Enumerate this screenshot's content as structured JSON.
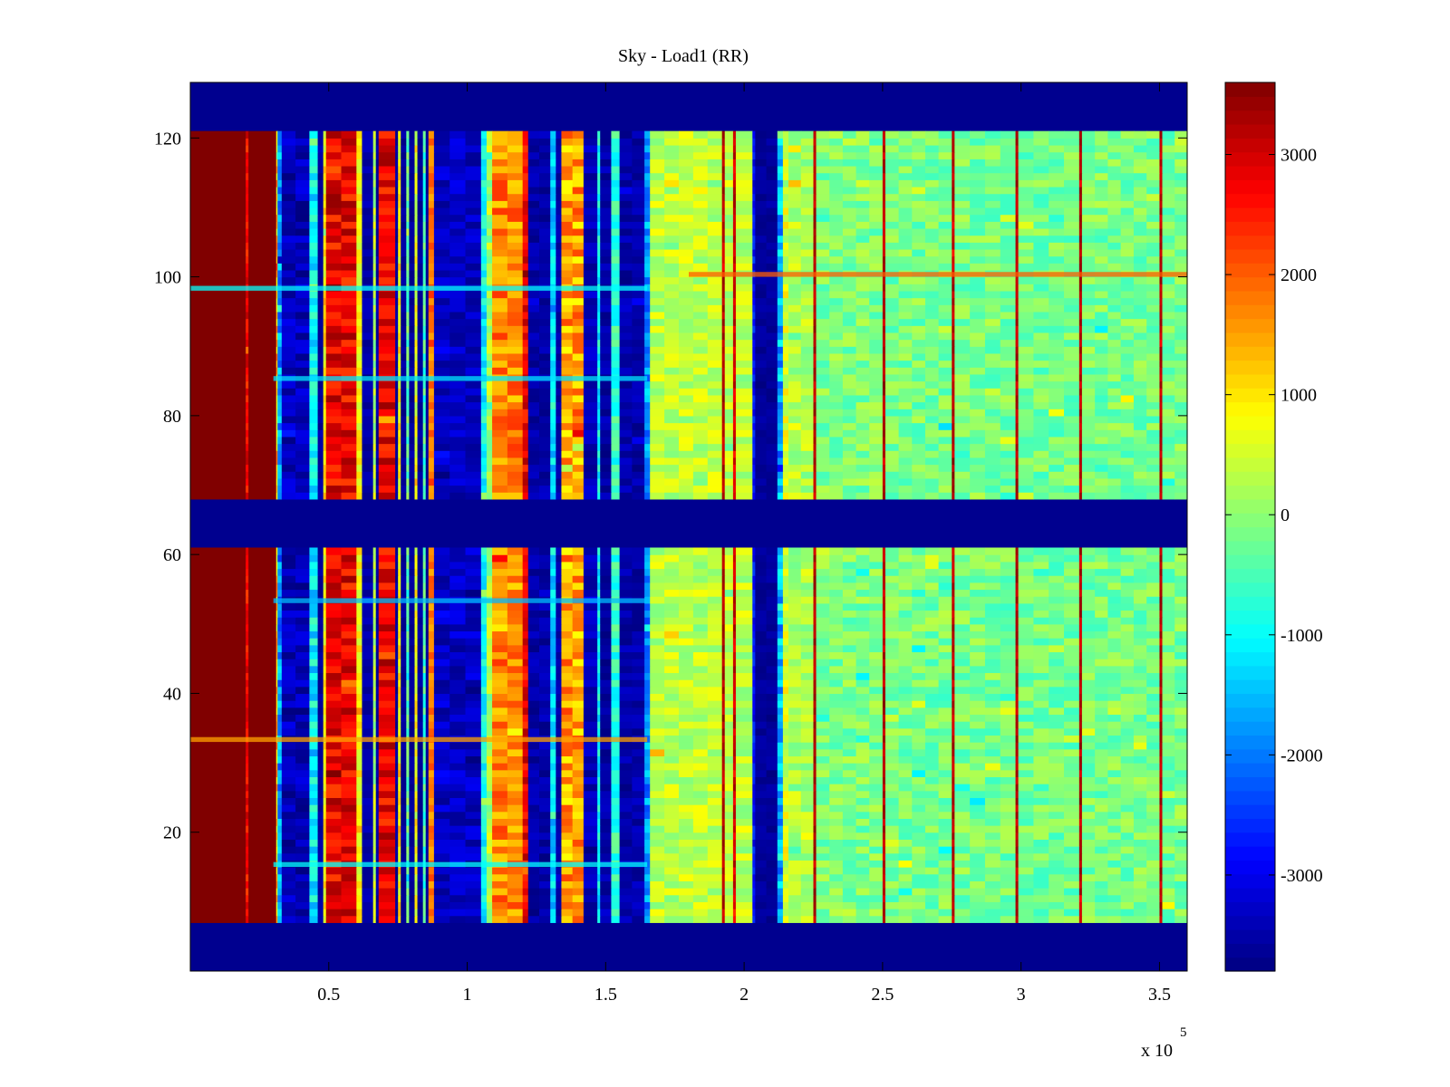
{
  "chart_data": {
    "type": "heatmap",
    "title": "Sky - Load1 (RR)",
    "xlabel": "",
    "ylabel": "",
    "x_multiplier_label": "x 10",
    "x_multiplier_exponent": "5",
    "xlim": [
      0,
      3.6
    ],
    "ylim": [
      0,
      128
    ],
    "x_ticks": [
      {
        "value": 0.5,
        "label": "0.5"
      },
      {
        "value": 1.0,
        "label": "1"
      },
      {
        "value": 1.5,
        "label": "1.5"
      },
      {
        "value": 2.0,
        "label": "2"
      },
      {
        "value": 2.5,
        "label": "2.5"
      },
      {
        "value": 3.0,
        "label": "3"
      },
      {
        "value": 3.5,
        "label": "3.5"
      }
    ],
    "y_ticks": [
      {
        "value": 20,
        "label": "20"
      },
      {
        "value": 40,
        "label": "40"
      },
      {
        "value": 60,
        "label": "60"
      },
      {
        "value": 80,
        "label": "80"
      },
      {
        "value": 100,
        "label": "100"
      },
      {
        "value": 120,
        "label": "120"
      }
    ],
    "colorbar": {
      "colormap": "jet",
      "range": [
        -3800,
        3600
      ],
      "ticks": [
        {
          "value": 3000,
          "label": "3000"
        },
        {
          "value": 2000,
          "label": "2000"
        },
        {
          "value": 1000,
          "label": "1000"
        },
        {
          "value": 0,
          "label": "0"
        },
        {
          "value": -1000,
          "label": "-1000"
        },
        {
          "value": -2000,
          "label": "-2000"
        },
        {
          "value": -3000,
          "label": "-3000"
        }
      ]
    },
    "background_value": -3800,
    "row_blocks": [
      {
        "y": [
          7,
          61
        ],
        "mid_fade": 0.15
      },
      {
        "y": [
          68,
          121
        ],
        "mid_fade": 0.0
      }
    ],
    "column_bands": [
      {
        "x": [
          0.0,
          0.2
        ],
        "value": 3600,
        "jitter": 0
      },
      {
        "x": [
          0.2,
          0.21
        ],
        "value": 2700,
        "jitter": 500
      },
      {
        "x": [
          0.21,
          0.31
        ],
        "value": 3600,
        "jitter": 0
      },
      {
        "x": [
          0.31,
          0.315
        ],
        "value": 1200,
        "jitter": 800
      },
      {
        "x": [
          0.315,
          0.33
        ],
        "value": -1800,
        "jitter": 700
      },
      {
        "x": [
          0.33,
          0.43
        ],
        "value": -3400,
        "jitter": 400
      },
      {
        "x": [
          0.43,
          0.46
        ],
        "value": -1100,
        "jitter": 600
      },
      {
        "x": [
          0.46,
          0.48
        ],
        "value": -3600,
        "jitter": 150
      },
      {
        "x": [
          0.48,
          0.49
        ],
        "value": 900,
        "jitter": 500
      },
      {
        "x": [
          0.49,
          0.6
        ],
        "value": 2800,
        "jitter": 600
      },
      {
        "x": [
          0.6,
          0.62
        ],
        "value": 800,
        "jitter": 400
      },
      {
        "x": [
          0.62,
          0.66
        ],
        "value": -3500,
        "jitter": 200
      },
      {
        "x": [
          0.66,
          0.67
        ],
        "value": 300,
        "jitter": 500
      },
      {
        "x": [
          0.67,
          0.68
        ],
        "value": -3500,
        "jitter": 200
      },
      {
        "x": [
          0.68,
          0.74
        ],
        "value": 2800,
        "jitter": 600
      },
      {
        "x": [
          0.74,
          0.75
        ],
        "value": -3600,
        "jitter": 150
      },
      {
        "x": [
          0.75,
          0.76
        ],
        "value": 900,
        "jitter": 500
      },
      {
        "x": [
          0.76,
          0.78
        ],
        "value": -3600,
        "jitter": 150
      },
      {
        "x": [
          0.78,
          0.79
        ],
        "value": -300,
        "jitter": 500
      },
      {
        "x": [
          0.79,
          0.81
        ],
        "value": -3600,
        "jitter": 150
      },
      {
        "x": [
          0.81,
          0.82
        ],
        "value": 700,
        "jitter": 500
      },
      {
        "x": [
          0.82,
          0.84
        ],
        "value": -3600,
        "jitter": 150
      },
      {
        "x": [
          0.84,
          0.85
        ],
        "value": -500,
        "jitter": 500
      },
      {
        "x": [
          0.85,
          0.86
        ],
        "value": -3600,
        "jitter": 150
      },
      {
        "x": [
          0.86,
          0.88
        ],
        "value": 1800,
        "jitter": 400
      },
      {
        "x": [
          0.88,
          1.05
        ],
        "value": -3300,
        "jitter": 350
      },
      {
        "x": [
          1.05,
          1.07
        ],
        "value": -1000,
        "jitter": 500
      },
      {
        "x": [
          1.07,
          1.09
        ],
        "value": 200,
        "jitter": 500
      },
      {
        "x": [
          1.09,
          1.2
        ],
        "value": 1700,
        "jitter": 600
      },
      {
        "x": [
          1.2,
          1.22
        ],
        "value": 2800,
        "jitter": 500
      },
      {
        "x": [
          1.22,
          1.3
        ],
        "value": -3500,
        "jitter": 250
      },
      {
        "x": [
          1.3,
          1.32
        ],
        "value": -1300,
        "jitter": 500
      },
      {
        "x": [
          1.32,
          1.34
        ],
        "value": -3500,
        "jitter": 200
      },
      {
        "x": [
          1.34,
          1.42
        ],
        "value": 1500,
        "jitter": 700
      },
      {
        "x": [
          1.42,
          1.47
        ],
        "value": -3400,
        "jitter": 300
      },
      {
        "x": [
          1.47,
          1.48
        ],
        "value": -1000,
        "jitter": 500
      },
      {
        "x": [
          1.48,
          1.52
        ],
        "value": -3500,
        "jitter": 250
      },
      {
        "x": [
          1.52,
          1.55
        ],
        "value": -700,
        "jitter": 500
      },
      {
        "x": [
          1.55,
          1.64
        ],
        "value": -3500,
        "jitter": 250
      },
      {
        "x": [
          1.64,
          1.66
        ],
        "value": -1800,
        "jitter": 600
      },
      {
        "x": [
          1.66,
          1.92
        ],
        "value": 350,
        "jitter": 450
      },
      {
        "x": [
          1.92,
          1.93
        ],
        "value": 3200,
        "jitter": 300
      },
      {
        "x": [
          1.93,
          1.96
        ],
        "value": 350,
        "jitter": 450
      },
      {
        "x": [
          1.96,
          1.97
        ],
        "value": 3000,
        "jitter": 400
      },
      {
        "x": [
          1.97,
          2.03
        ],
        "value": 300,
        "jitter": 450
      },
      {
        "x": [
          2.03,
          2.04
        ],
        "value": -2800,
        "jitter": 400
      },
      {
        "x": [
          2.04,
          2.12
        ],
        "value": -3600,
        "jitter": 150
      },
      {
        "x": [
          2.12,
          2.14
        ],
        "value": -1600,
        "jitter": 700
      },
      {
        "x": [
          2.14,
          2.16
        ],
        "value": 600,
        "jitter": 500
      },
      {
        "x": [
          2.16,
          2.25
        ],
        "value": 250,
        "jitter": 450
      },
      {
        "x": [
          2.25,
          2.26
        ],
        "value": 3200,
        "jitter": 300
      },
      {
        "x": [
          2.26,
          2.5
        ],
        "value": -100,
        "jitter": 450
      },
      {
        "x": [
          2.5,
          2.51
        ],
        "value": 3200,
        "jitter": 300
      },
      {
        "x": [
          2.51,
          2.75
        ],
        "value": -150,
        "jitter": 450
      },
      {
        "x": [
          2.75,
          2.76
        ],
        "value": 3200,
        "jitter": 300
      },
      {
        "x": [
          2.76,
          2.98
        ],
        "value": -150,
        "jitter": 450
      },
      {
        "x": [
          2.98,
          2.99
        ],
        "value": 3200,
        "jitter": 300
      },
      {
        "x": [
          2.99,
          3.21
        ],
        "value": -200,
        "jitter": 450
      },
      {
        "x": [
          3.21,
          3.22
        ],
        "value": 3200,
        "jitter": 300
      },
      {
        "x": [
          3.22,
          3.5
        ],
        "value": -150,
        "jitter": 450
      },
      {
        "x": [
          3.5,
          3.51
        ],
        "value": 3200,
        "jitter": 300
      },
      {
        "x": [
          3.51,
          3.6
        ],
        "value": -150,
        "jitter": 450
      }
    ],
    "row_artifacts": [
      {
        "y": 100,
        "x": [
          1.8,
          3.6
        ],
        "value": 2000
      },
      {
        "y": 98,
        "x": [
          0.0,
          1.65
        ],
        "value": -1000
      },
      {
        "y": 85,
        "x": [
          0.3,
          1.65
        ],
        "value": -1200
      },
      {
        "y": 33,
        "x": [
          0.0,
          1.65
        ],
        "value": 1500
      },
      {
        "y": 15,
        "x": [
          0.3,
          1.65
        ],
        "value": -1000
      },
      {
        "y": 53,
        "x": [
          0.3,
          1.65
        ],
        "value": -1500
      }
    ]
  }
}
